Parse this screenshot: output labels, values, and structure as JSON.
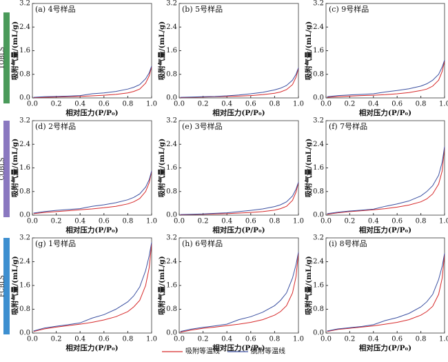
{
  "row_labels": [
    "TOBLS",
    "COBLS",
    "FCBLS"
  ],
  "legend": [
    {
      "name": "吸附等温线",
      "color": "#d62728"
    },
    {
      "name": "脱附等温线",
      "color": "#3a4fa0"
    }
  ],
  "chart_data": [
    {
      "type": "line",
      "title": "(a) 4号样品",
      "xlabel": "相对压力(P/P₀)",
      "ylabel": "吸附气量/(mL/g)",
      "x": [
        0.01,
        0.1,
        0.2,
        0.3,
        0.4,
        0.5,
        0.6,
        0.7,
        0.8,
        0.85,
        0.9,
        0.95,
        0.98,
        1.0
      ],
      "series": [
        {
          "values": [
            0.01,
            0.02,
            0.03,
            0.04,
            0.05,
            0.07,
            0.09,
            0.12,
            0.17,
            0.22,
            0.3,
            0.5,
            0.75,
            1.05
          ]
        },
        {
          "values": [
            0.02,
            0.04,
            0.05,
            0.06,
            0.08,
            0.14,
            0.17,
            0.22,
            0.3,
            0.36,
            0.45,
            0.65,
            0.85,
            1.08
          ]
        }
      ],
      "xlim": [
        0,
        1
      ],
      "xticks": [
        {
          "value": 0,
          "label": "0.0"
        },
        0.2,
        0.4,
        0.6,
        0.8,
        {
          "value": 1,
          "label": "1.0"
        }
      ],
      "ylim": [
        0,
        3.2
      ],
      "yticks": [
        {
          "value": 0,
          "label": "0.0"
        },
        0.8,
        1.6,
        2.4,
        3.2
      ]
    },
    {
      "type": "line",
      "title": "(b) 5号样品",
      "xlabel": "相对压力(P/P₀)",
      "ylabel": "吸附气量/(mL/g)",
      "x": [
        0.01,
        0.1,
        0.2,
        0.3,
        0.4,
        0.5,
        0.6,
        0.7,
        0.8,
        0.85,
        0.9,
        0.95,
        0.98,
        1.0
      ],
      "series": [
        {
          "values": [
            0.01,
            0.02,
            0.03,
            0.04,
            0.05,
            0.06,
            0.08,
            0.11,
            0.16,
            0.2,
            0.28,
            0.45,
            0.7,
            1.0
          ]
        },
        {
          "values": [
            0.02,
            0.03,
            0.04,
            0.05,
            0.07,
            0.1,
            0.14,
            0.19,
            0.27,
            0.33,
            0.42,
            0.6,
            0.8,
            1.02
          ]
        }
      ],
      "xlim": [
        0,
        1
      ],
      "xticks": [
        {
          "value": 0,
          "label": "0.0"
        },
        0.2,
        0.4,
        0.6,
        0.8,
        {
          "value": 1,
          "label": "1.0"
        }
      ],
      "ylim": [
        0,
        3.2
      ],
      "yticks": [
        {
          "value": 0,
          "label": "0.0"
        },
        0.8,
        1.6,
        2.4,
        3.2
      ]
    },
    {
      "type": "line",
      "title": "(c) 9号样品",
      "xlabel": "相对压力(P/P₀)",
      "ylabel": "吸附气量/(mL/g)",
      "x": [
        0.01,
        0.1,
        0.2,
        0.3,
        0.4,
        0.5,
        0.6,
        0.7,
        0.8,
        0.85,
        0.9,
        0.95,
        0.98,
        1.0
      ],
      "series": [
        {
          "values": [
            0.02,
            0.04,
            0.06,
            0.08,
            0.09,
            0.11,
            0.14,
            0.18,
            0.25,
            0.3,
            0.4,
            0.6,
            0.9,
            1.25
          ]
        },
        {
          "values": [
            0.04,
            0.08,
            0.1,
            0.12,
            0.14,
            0.2,
            0.25,
            0.31,
            0.4,
            0.48,
            0.6,
            0.8,
            1.05,
            1.28
          ]
        }
      ],
      "xlim": [
        0,
        1
      ],
      "xticks": [
        {
          "value": 0,
          "label": "0.0"
        },
        0.2,
        0.4,
        0.6,
        0.8,
        {
          "value": 1,
          "label": "1.0"
        }
      ],
      "ylim": [
        0,
        3.2
      ],
      "yticks": [
        {
          "value": 0,
          "label": "0.0"
        },
        0.8,
        1.6,
        2.4,
        3.2
      ]
    },
    {
      "type": "line",
      "title": "(d) 2号样品",
      "xlabel": "相对压力(P/P₀)",
      "ylabel": "吸附气量/(mL/g)",
      "x": [
        0.01,
        0.1,
        0.2,
        0.3,
        0.4,
        0.5,
        0.6,
        0.7,
        0.8,
        0.85,
        0.9,
        0.95,
        0.98,
        1.0
      ],
      "series": [
        {
          "values": [
            0.05,
            0.09,
            0.12,
            0.15,
            0.18,
            0.21,
            0.25,
            0.3,
            0.38,
            0.45,
            0.56,
            0.8,
            1.1,
            1.48
          ]
        },
        {
          "values": [
            0.07,
            0.12,
            0.16,
            0.19,
            0.22,
            0.3,
            0.35,
            0.42,
            0.52,
            0.6,
            0.72,
            0.95,
            1.2,
            1.5
          ]
        }
      ],
      "xlim": [
        0,
        1
      ],
      "xticks": [
        {
          "value": 0,
          "label": "0.0"
        },
        0.2,
        0.4,
        0.6,
        0.8,
        {
          "value": 1,
          "label": "1.0"
        }
      ],
      "ylim": [
        0,
        3.2
      ],
      "yticks": [
        {
          "value": 0,
          "label": "0.0"
        },
        0.8,
        1.6,
        2.4,
        3.2
      ]
    },
    {
      "type": "line",
      "title": "(e) 3号样品",
      "xlabel": "相对压力(P/P₀)",
      "ylabel": "吸附气量/(mL/g)",
      "x": [
        0.01,
        0.1,
        0.2,
        0.3,
        0.4,
        0.5,
        0.6,
        0.7,
        0.8,
        0.85,
        0.9,
        0.95,
        0.98,
        1.0
      ],
      "series": [
        {
          "values": [
            0.01,
            0.02,
            0.03,
            0.04,
            0.05,
            0.07,
            0.09,
            0.12,
            0.17,
            0.22,
            0.3,
            0.5,
            0.78,
            1.1
          ]
        },
        {
          "values": [
            0.02,
            0.03,
            0.04,
            0.06,
            0.08,
            0.12,
            0.16,
            0.21,
            0.29,
            0.35,
            0.45,
            0.65,
            0.88,
            1.12
          ]
        }
      ],
      "xlim": [
        0,
        1
      ],
      "xticks": [
        {
          "value": 0,
          "label": "0.0"
        },
        0.2,
        0.4,
        0.6,
        0.8,
        {
          "value": 1,
          "label": "1.0"
        }
      ],
      "ylim": [
        0,
        3.2
      ],
      "yticks": [
        {
          "value": 0,
          "label": "0.0"
        },
        0.8,
        1.6,
        2.4,
        3.2
      ]
    },
    {
      "type": "line",
      "title": "(f) 7号样品",
      "xlabel": "相对压力(P/P₀)",
      "ylabel": "吸附气量/(mL/g)",
      "x": [
        0.01,
        0.1,
        0.2,
        0.3,
        0.4,
        0.5,
        0.6,
        0.7,
        0.8,
        0.85,
        0.9,
        0.95,
        0.98,
        1.0
      ],
      "series": [
        {
          "values": [
            0.03,
            0.08,
            0.12,
            0.15,
            0.18,
            0.22,
            0.27,
            0.34,
            0.45,
            0.55,
            0.72,
            1.05,
            1.5,
            2.3
          ]
        },
        {
          "values": [
            0.05,
            0.1,
            0.14,
            0.17,
            0.2,
            0.3,
            0.38,
            0.48,
            0.65,
            0.8,
            1.0,
            1.35,
            1.8,
            2.32
          ]
        }
      ],
      "xlim": [
        0,
        1
      ],
      "xticks": [
        {
          "value": 0,
          "label": "0.0"
        },
        0.2,
        0.4,
        0.6,
        0.8,
        {
          "value": 1,
          "label": "1.0"
        }
      ],
      "ylim": [
        0,
        3.2
      ],
      "yticks": [
        {
          "value": 0,
          "label": "0.0"
        },
        0.8,
        1.6,
        2.4,
        3.2
      ]
    },
    {
      "type": "line",
      "title": "(g) 1号样品",
      "xlabel": "相对压力(P/P₀)",
      "ylabel": "吸附气量/(mL/g)",
      "x": [
        0.01,
        0.1,
        0.2,
        0.3,
        0.4,
        0.5,
        0.6,
        0.7,
        0.8,
        0.85,
        0.9,
        0.95,
        0.98,
        1.0
      ],
      "series": [
        {
          "values": [
            0.05,
            0.14,
            0.2,
            0.25,
            0.3,
            0.36,
            0.44,
            0.55,
            0.72,
            0.88,
            1.1,
            1.6,
            2.2,
            3.0
          ]
        },
        {
          "values": [
            0.07,
            0.17,
            0.23,
            0.28,
            0.34,
            0.5,
            0.62,
            0.8,
            1.05,
            1.25,
            1.55,
            2.1,
            2.6,
            3.05
          ]
        }
      ],
      "xlim": [
        0,
        1
      ],
      "xticks": [
        {
          "value": 0,
          "label": "0.0"
        },
        0.2,
        0.4,
        0.6,
        0.8,
        {
          "value": 1,
          "label": "1.0"
        }
      ],
      "ylim": [
        0,
        3.2
      ],
      "yticks": [
        {
          "value": 0,
          "label": "0.0"
        },
        0.8,
        1.6,
        2.4,
        3.2
      ]
    },
    {
      "type": "line",
      "title": "(h) 6号样品",
      "xlabel": "相对压力(P/P₀)",
      "ylabel": "吸附气量/(mL/g)",
      "x": [
        0.01,
        0.1,
        0.2,
        0.3,
        0.4,
        0.5,
        0.6,
        0.7,
        0.8,
        0.85,
        0.9,
        0.95,
        0.98,
        1.0
      ],
      "series": [
        {
          "values": [
            0.03,
            0.1,
            0.16,
            0.2,
            0.25,
            0.3,
            0.36,
            0.45,
            0.6,
            0.72,
            0.92,
            1.35,
            1.9,
            2.7
          ]
        },
        {
          "values": [
            0.05,
            0.13,
            0.19,
            0.24,
            0.3,
            0.45,
            0.55,
            0.7,
            0.92,
            1.1,
            1.35,
            1.85,
            2.3,
            2.72
          ]
        }
      ],
      "xlim": [
        0,
        1
      ],
      "xticks": [
        {
          "value": 0,
          "label": "0.0"
        },
        0.2,
        0.4,
        0.6,
        0.8,
        {
          "value": 1,
          "label": "1.0"
        }
      ],
      "ylim": [
        0,
        3.2
      ],
      "yticks": [
        {
          "value": 0,
          "label": "0.0"
        },
        0.8,
        1.6,
        2.4,
        3.2
      ]
    },
    {
      "type": "line",
      "title": "(i) 8号样品",
      "xlabel": "相对压力(P/P₀)",
      "ylabel": "吸附气量/(mL/g)",
      "x": [
        0.01,
        0.1,
        0.2,
        0.3,
        0.4,
        0.5,
        0.6,
        0.7,
        0.8,
        0.85,
        0.9,
        0.95,
        0.98,
        1.0
      ],
      "series": [
        {
          "values": [
            0.05,
            0.12,
            0.16,
            0.2,
            0.24,
            0.3,
            0.36,
            0.45,
            0.6,
            0.72,
            0.9,
            1.3,
            1.85,
            2.65
          ]
        },
        {
          "values": [
            0.07,
            0.14,
            0.18,
            0.22,
            0.28,
            0.42,
            0.52,
            0.66,
            0.88,
            1.05,
            1.3,
            1.8,
            2.25,
            2.68
          ]
        }
      ],
      "xlim": [
        0,
        1
      ],
      "xticks": [
        {
          "value": 0,
          "label": "0.0"
        },
        0.2,
        0.4,
        0.6,
        0.8,
        {
          "value": 1,
          "label": "1.0"
        }
      ],
      "ylim": [
        0,
        3.2
      ],
      "yticks": [
        {
          "value": 0,
          "label": "0.0"
        },
        0.8,
        1.6,
        2.4,
        3.2
      ]
    }
  ]
}
